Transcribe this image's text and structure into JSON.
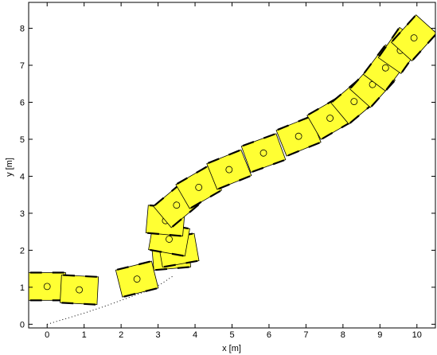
{
  "chart_data": {
    "type": "scatter",
    "title": "",
    "xlabel": "x [m]",
    "ylabel": "y [m]",
    "xlim": [
      -0.5,
      10.5
    ],
    "ylim": [
      -0.1,
      8.7
    ],
    "xticks": [
      0,
      1,
      2,
      3,
      4,
      5,
      6,
      7,
      8,
      9,
      10
    ],
    "yticks": [
      0,
      1,
      2,
      3,
      4,
      5,
      6,
      7,
      8
    ],
    "grid": false,
    "legend": "none",
    "colors": {
      "robot_fill": "#ffff33",
      "outline": "#000000",
      "path": "#000000"
    },
    "path_description_series": [
      {
        "values": [
          [
            0.0,
            0.0
          ],
          [
            0.5,
            0.15
          ],
          [
            1.0,
            0.3
          ],
          [
            1.6,
            0.5
          ],
          [
            2.2,
            0.72
          ],
          [
            2.7,
            0.9
          ],
          [
            3.1,
            1.1
          ],
          [
            3.4,
            1.3
          ]
        ]
      }
    ],
    "robots": [
      {
        "x": 0.0,
        "y": 1.02,
        "heading": 0
      },
      {
        "x": 0.87,
        "y": 0.93,
        "heading": -3
      },
      {
        "x": 2.43,
        "y": 1.22,
        "heading": 14
      },
      {
        "x": 3.35,
        "y": 1.88,
        "heading": 5
      },
      {
        "x": 3.55,
        "y": 2.0,
        "heading": 10
      },
      {
        "x": 3.3,
        "y": 2.3,
        "heading": -10
      },
      {
        "x": 3.2,
        "y": 2.8,
        "heading": -5
      },
      {
        "x": 3.5,
        "y": 3.22,
        "heading": 40
      },
      {
        "x": 4.1,
        "y": 3.7,
        "heading": 30
      },
      {
        "x": 4.92,
        "y": 4.18,
        "heading": 22
      },
      {
        "x": 5.85,
        "y": 4.63,
        "heading": 20
      },
      {
        "x": 6.8,
        "y": 5.08,
        "heading": 22
      },
      {
        "x": 7.65,
        "y": 5.57,
        "heading": 30
      },
      {
        "x": 8.3,
        "y": 6.02,
        "heading": 40
      },
      {
        "x": 8.8,
        "y": 6.48,
        "heading": 48
      },
      {
        "x": 9.15,
        "y": 6.93,
        "heading": 53
      },
      {
        "x": 9.55,
        "y": 7.4,
        "heading": 55
      },
      {
        "x": 9.92,
        "y": 7.74,
        "heading": 48
      }
    ],
    "robot_size_m": [
      1.0,
      0.75
    ]
  }
}
